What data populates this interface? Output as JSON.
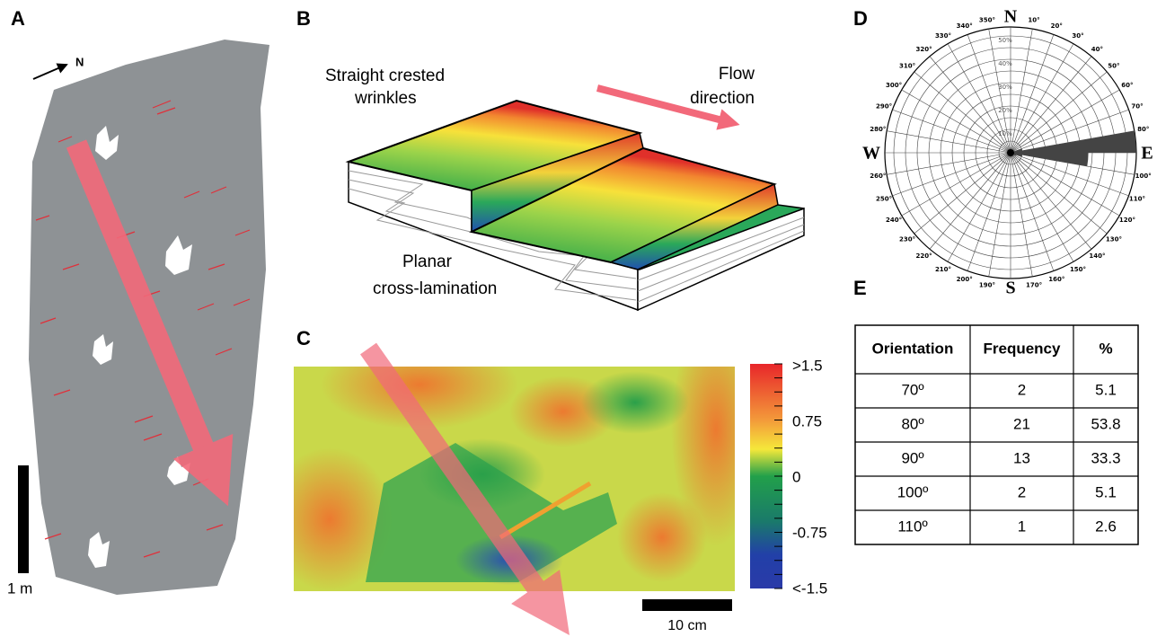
{
  "panels": {
    "a": {
      "label": "A",
      "north": "N",
      "scale": "1 m"
    },
    "b": {
      "label": "B",
      "wrinkles": [
        "Straight crested",
        "wrinkles"
      ],
      "flow": [
        "Flow",
        "direction"
      ],
      "lamination": [
        "Planar",
        "cross-lamination"
      ]
    },
    "c": {
      "label": "C",
      "colorbar": [
        ">1.5",
        "0.75",
        "0",
        "-0.75",
        "<-1.5"
      ],
      "scale": "10 cm"
    },
    "d": {
      "label": "D",
      "compass": {
        "n": "N",
        "e": "E",
        "s": "S",
        "w": "W"
      },
      "rings": [
        {
          "value": 10,
          "label": "10%"
        },
        {
          "value": 20,
          "label": "20%"
        },
        {
          "value": 30,
          "label": "30%"
        },
        {
          "value": 40,
          "label": "40%"
        },
        {
          "value": 50,
          "label": "50%"
        }
      ],
      "degrees": [
        {
          "value": 10,
          "label": "10°"
        },
        {
          "value": 20,
          "label": "20°"
        },
        {
          "value": 30,
          "label": "30°"
        },
        {
          "value": 40,
          "label": "40°"
        },
        {
          "value": 50,
          "label": "50°"
        },
        {
          "value": 60,
          "label": "60°"
        },
        {
          "value": 70,
          "label": "70°"
        },
        {
          "value": 80,
          "label": "80°"
        },
        {
          "value": 100,
          "label": "100°"
        },
        {
          "value": 110,
          "label": "110°"
        },
        {
          "value": 120,
          "label": "120°"
        },
        {
          "value": 130,
          "label": "130°"
        },
        {
          "value": 140,
          "label": "140°"
        },
        {
          "value": 150,
          "label": "150°"
        },
        {
          "value": 160,
          "label": "160°"
        },
        {
          "value": 170,
          "label": "170°"
        },
        {
          "value": 190,
          "label": "190°"
        },
        {
          "value": 200,
          "label": "200°"
        },
        {
          "value": 210,
          "label": "210°"
        },
        {
          "value": 220,
          "label": "220°"
        },
        {
          "value": 230,
          "label": "230°"
        },
        {
          "value": 240,
          "label": "240°"
        },
        {
          "value": 250,
          "label": "250°"
        },
        {
          "value": 260,
          "label": "260°"
        },
        {
          "value": 280,
          "label": "280°"
        },
        {
          "value": 290,
          "label": "290°"
        },
        {
          "value": 300,
          "label": "300°"
        },
        {
          "value": 310,
          "label": "310°"
        },
        {
          "value": 320,
          "label": "320°"
        },
        {
          "value": 330,
          "label": "330°"
        },
        {
          "value": 340,
          "label": "340°"
        },
        {
          "value": 350,
          "label": "350°"
        }
      ]
    },
    "e": {
      "label": "E",
      "table": {
        "header": [
          "Orientation",
          "Frequency",
          "%"
        ],
        "rows": [
          [
            "70º",
            2,
            5.1
          ],
          [
            "80º",
            21,
            53.8
          ],
          [
            "90º",
            13,
            33.3
          ],
          [
            "100º",
            2,
            5.1
          ],
          [
            "110º",
            1,
            2.6
          ]
        ]
      }
    }
  }
}
